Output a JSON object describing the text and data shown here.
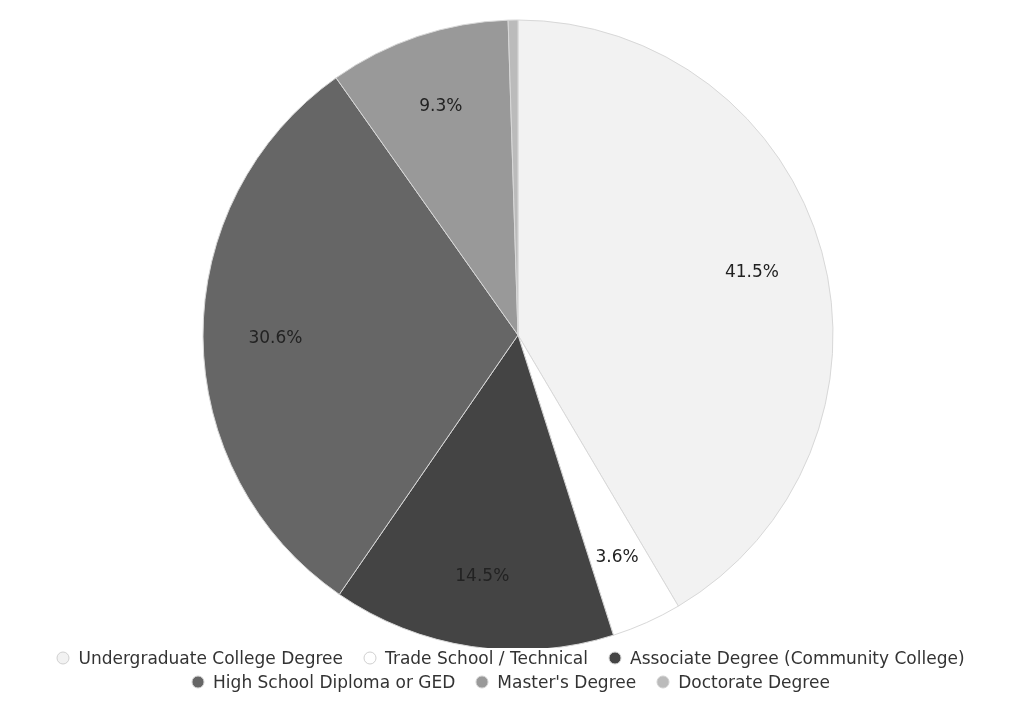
{
  "chart_data": {
    "type": "pie",
    "categories": [
      "Undergraduate College Degree",
      "Trade School / Technical",
      "Associate Degree (Community College)",
      "High School Diploma or GED",
      "Master's Degree",
      "Doctorate Degree"
    ],
    "values": [
      41.5,
      3.6,
      14.5,
      30.6,
      9.3,
      0.5
    ],
    "value_labels": [
      "41.5%",
      "3.6%",
      "14.5%",
      "30.6%",
      "9.3%",
      null
    ],
    "colors": [
      "#f2f2f2",
      "#ffffff",
      "#444444",
      "#666666",
      "#999999",
      "#bbbbbb"
    ],
    "legend": "bottom"
  }
}
